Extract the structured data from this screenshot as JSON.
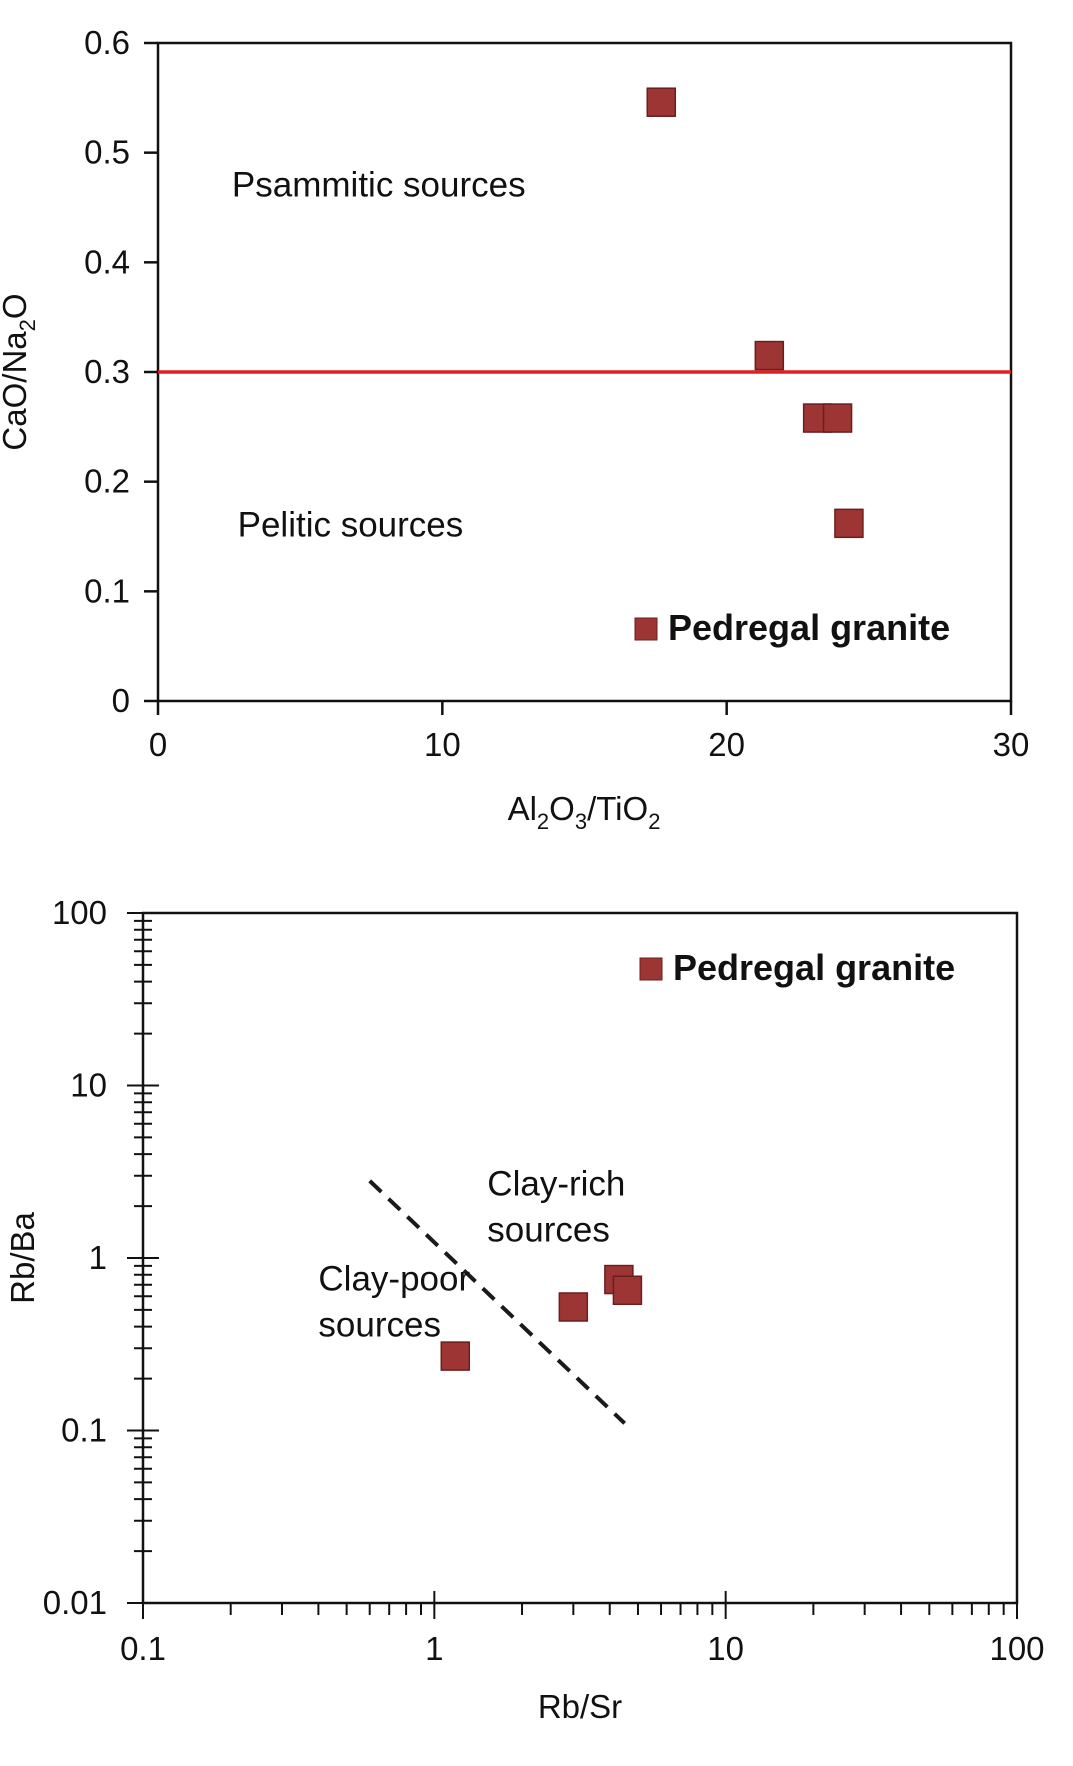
{
  "colors": {
    "marker_fill": "#9e3535",
    "marker_stroke": "#6b1e1e",
    "boundary_line": "#e02020",
    "dashed_line": "#1a1a1a",
    "axis": "#111111"
  },
  "chart_data": [
    {
      "type": "scatter",
      "xlabel": {
        "base": "Al",
        "s1": "2",
        "mid": "O",
        "s2": "3",
        "tail": "/TiO",
        "s3": "2"
      },
      "ylabel": {
        "base": "CaO/Na",
        "s1": "2",
        "tail": "O"
      },
      "xlim": [
        0,
        30
      ],
      "ylim": [
        0,
        0.6
      ],
      "x_ticks": [
        0,
        10,
        20,
        30
      ],
      "x_tick_labels": [
        "0",
        "10",
        "20",
        "30"
      ],
      "y_ticks": [
        0,
        0.1,
        0.2,
        0.3,
        0.4,
        0.5,
        0.6
      ],
      "y_tick_labels": [
        "0",
        "0.1",
        "0.2",
        "0.3",
        "0.4",
        "0.5",
        "0.6"
      ],
      "series": [
        {
          "name": "Pedregal granite",
          "marker": "square",
          "points": [
            {
              "x": 17.7,
              "y": 0.546
            },
            {
              "x": 21.5,
              "y": 0.315
            },
            {
              "x": 23.2,
              "y": 0.258
            },
            {
              "x": 23.9,
              "y": 0.258
            },
            {
              "x": 24.3,
              "y": 0.162
            }
          ]
        }
      ],
      "reference_line": {
        "type": "horizontal",
        "y": 0.3,
        "x_range": [
          0,
          30
        ]
      },
      "annotations": [
        {
          "text": "Psammitic sources",
          "x": 2.6,
          "y": 0.46
        },
        {
          "text": "Pelitic sources",
          "x": 2.8,
          "y": 0.15
        }
      ],
      "legend": {
        "text": "Pedregal granite",
        "position": "bottom-right"
      },
      "grid": false
    },
    {
      "type": "scatter",
      "xscale": "log",
      "yscale": "log",
      "xlabel": "Rb/Sr",
      "ylabel": "Rb/Ba",
      "xlim": [
        0.1,
        100
      ],
      "ylim": [
        0.01,
        100
      ],
      "x_ticks": [
        0.1,
        1,
        10,
        100
      ],
      "x_tick_labels": [
        "0.1",
        "1",
        "10",
        "100"
      ],
      "y_ticks": [
        0.01,
        0.1,
        1,
        10,
        100
      ],
      "y_tick_labels": [
        "0.01",
        "0.1",
        "1",
        "10",
        "100"
      ],
      "series": [
        {
          "name": "Pedregal granite",
          "marker": "square",
          "points": [
            {
              "x": 1.18,
              "y": 0.27
            },
            {
              "x": 3.0,
              "y": 0.52
            },
            {
              "x": 4.3,
              "y": 0.75
            },
            {
              "x": 4.6,
              "y": 0.65
            }
          ]
        }
      ],
      "reference_line": {
        "type": "dashed",
        "from": {
          "x": 0.6,
          "y": 2.8
        },
        "to": {
          "x": 4.5,
          "y": 0.11
        }
      },
      "annotations": [
        {
          "lines": [
            "Clay-rich",
            "sources"
          ],
          "x": 1.52,
          "y": 2.3
        },
        {
          "lines": [
            "Clay-poor",
            "sources"
          ],
          "x": 0.4,
          "y": 0.65
        }
      ],
      "legend": {
        "text": "Pedregal granite",
        "position": "top-right"
      },
      "grid": false
    }
  ]
}
